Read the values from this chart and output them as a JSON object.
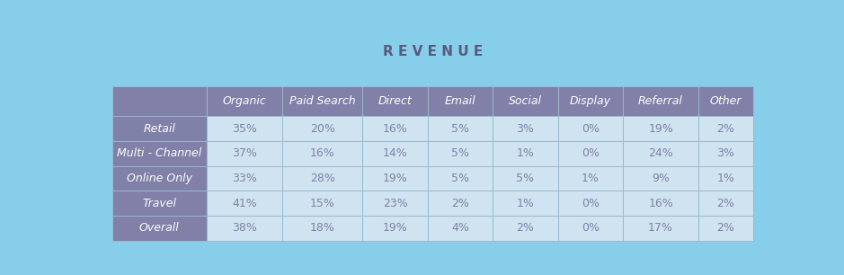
{
  "title": "R E V E N U E",
  "columns": [
    "",
    "Organic",
    "Paid Search",
    "Direct",
    "Email",
    "Social",
    "Display",
    "Referral",
    "Other"
  ],
  "rows": [
    [
      "Retail",
      "35%",
      "20%",
      "16%",
      "5%",
      "3%",
      "0%",
      "19%",
      "2%"
    ],
    [
      "Multi - Channel",
      "37%",
      "16%",
      "14%",
      "5%",
      "1%",
      "0%",
      "24%",
      "3%"
    ],
    [
      "Online Only",
      "33%",
      "28%",
      "19%",
      "5%",
      "5%",
      "1%",
      "9%",
      "1%"
    ],
    [
      "Travel",
      "41%",
      "15%",
      "23%",
      "2%",
      "1%",
      "0%",
      "16%",
      "2%"
    ],
    [
      "Overall",
      "38%",
      "18%",
      "19%",
      "4%",
      "2%",
      "0%",
      "17%",
      "2%"
    ]
  ],
  "bg_color": "#87ceeb",
  "header_bg": "#8080a8",
  "row_label_bg": "#8080a8",
  "cell_bg": "#cfe4f0",
  "header_text_color": "#ffffff",
  "row_label_text_color": "#ffffff",
  "cell_text_color": "#8080a8",
  "title_color": "#5a5a7a",
  "border_color": "#9ab8cc",
  "title_fontsize": 11,
  "header_fontsize": 9,
  "cell_fontsize": 9,
  "row_label_fontsize": 9
}
